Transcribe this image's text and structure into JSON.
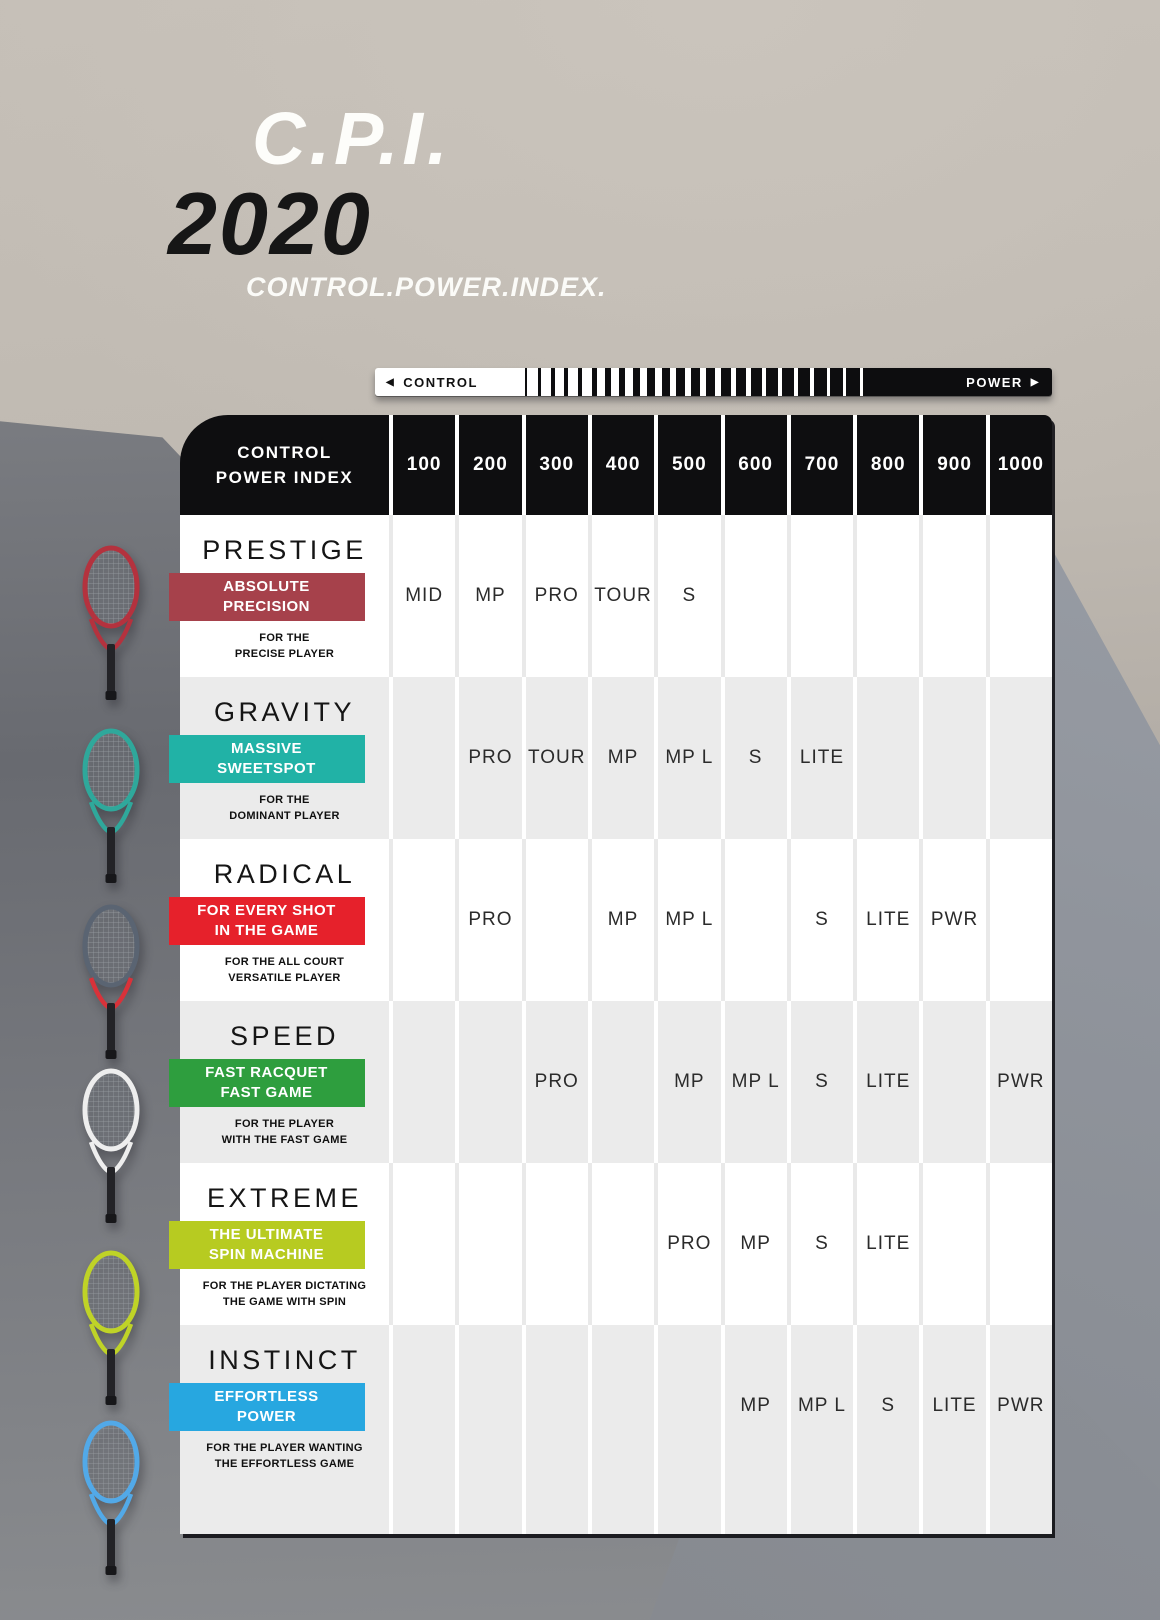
{
  "page": {
    "title": "C.P.I.",
    "year": "2020",
    "subtitle": "CONTROL.POWER.INDEX."
  },
  "scale_bar": {
    "left_arrow": "◀",
    "control_label": "CONTROL",
    "power_label": "POWER",
    "right_arrow": "▶"
  },
  "table": {
    "header": {
      "line1": "CONTROL",
      "line2": "POWER INDEX"
    },
    "columns": [
      "100",
      "200",
      "300",
      "400",
      "500",
      "600",
      "700",
      "800",
      "900",
      "1000"
    ],
    "rows": [
      {
        "name": "PRESTIGE",
        "tagline1": "ABSOLUTE",
        "tagline2": "PRECISION",
        "desc1": "FOR THE",
        "desc2": "PRECISE PLAYER",
        "accent_color": "#a6414b",
        "cells": [
          "MID",
          "MP",
          "PRO",
          "TOUR",
          "S",
          "",
          "",
          "",
          "",
          ""
        ]
      },
      {
        "name": "GRAVITY",
        "tagline1": "MASSIVE",
        "tagline2": "SWEETSPOT",
        "desc1": "FOR THE",
        "desc2": "DOMINANT PLAYER",
        "accent_color": "#21b2a6",
        "cells": [
          "",
          "PRO",
          "TOUR",
          "MP",
          "MP L",
          "S",
          "LITE",
          "",
          "",
          ""
        ]
      },
      {
        "name": "RADICAL",
        "tagline1": "FOR EVERY SHOT",
        "tagline2": "IN THE GAME",
        "desc1": "FOR THE ALL COURT",
        "desc2": "VERSATILE PLAYER",
        "accent_color": "#e6212b",
        "cells": [
          "",
          "PRO",
          "",
          "MP",
          "MP L",
          "",
          "S",
          "LITE",
          "PWR",
          ""
        ]
      },
      {
        "name": "SPEED",
        "tagline1": "FAST RACQUET",
        "tagline2": "FAST GAME",
        "desc1": "FOR THE PLAYER",
        "desc2": "WITH THE FAST GAME",
        "accent_color": "#2e9e3e",
        "cells": [
          "",
          "",
          "PRO",
          "",
          "MP",
          "MP L",
          "S",
          "LITE",
          "",
          "PWR"
        ]
      },
      {
        "name": "EXTREME",
        "tagline1": "THE ULTIMATE",
        "tagline2": "SPIN MACHINE",
        "desc1": "FOR THE PLAYER DICTATING",
        "desc2": "THE GAME WITH SPIN",
        "accent_color": "#b7cb21",
        "cells": [
          "",
          "",
          "",
          "",
          "PRO",
          "MP",
          "S",
          "LITE",
          "",
          ""
        ]
      },
      {
        "name": "INSTINCT",
        "tagline1": "EFFORTLESS",
        "tagline2": "POWER",
        "desc1": "FOR THE PLAYER WANTING",
        "desc2": "THE EFFORTLESS GAME",
        "accent_color": "#27a7e0",
        "cells": [
          "",
          "",
          "",
          "",
          "",
          "MP",
          "MP L",
          "S",
          "LITE",
          "PWR"
        ]
      }
    ]
  }
}
